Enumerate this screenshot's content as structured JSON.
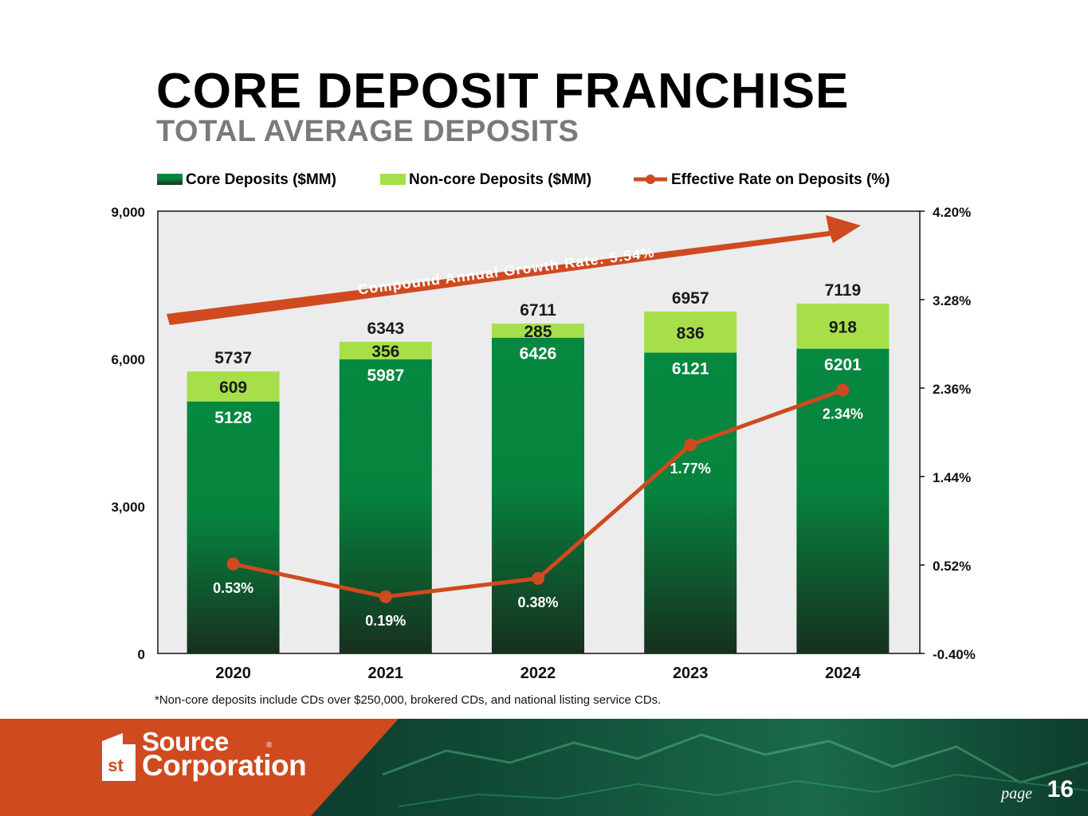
{
  "header": {
    "title": "CORE DEPOSIT FRANCHISE",
    "subtitle": "TOTAL AVERAGE DEPOSITS"
  },
  "chart_data": {
    "type": "bar",
    "stacked": true,
    "categories": [
      "2020",
      "2021",
      "2022",
      "2023",
      "2024"
    ],
    "series": [
      {
        "name": "Core Deposits ($MM)",
        "values": [
          5128,
          5987,
          6426,
          6121,
          6201
        ],
        "color": "#0a8a43"
      },
      {
        "name": "Non-core Deposits ($MM)",
        "values": [
          609,
          356,
          285,
          836,
          918
        ],
        "color": "#a6df4a"
      }
    ],
    "totals": [
      5737,
      6343,
      6711,
      6957,
      7119
    ],
    "line_series": {
      "name": "Effective Rate on Deposits (%)",
      "values": [
        0.53,
        0.19,
        0.38,
        1.77,
        2.34
      ],
      "labels": [
        "0.53%",
        "0.19%",
        "0.38%",
        "1.77%",
        "2.34%"
      ],
      "color": "#cf4a1f"
    },
    "ylim": [
      0,
      9000
    ],
    "y_ticks": [
      "0",
      "3,000",
      "6,000",
      "9,000"
    ],
    "y2lim": [
      -0.4,
      4.2
    ],
    "y2_ticks": [
      "-0.40%",
      "0.52%",
      "1.44%",
      "2.36%",
      "3.28%",
      "4.20%"
    ],
    "annotation": "Compound Annual Growth Rate: 5.54%",
    "legend_position": "top-left",
    "plot_background": "#ececec"
  },
  "footnote": "*Non-core deposits include CDs over $250,000, brokered CDs, and national listing service CDs.",
  "footer": {
    "logo_line1": "Source",
    "logo_line2": "Corporation",
    "logo_mark": "st",
    "logo_reg": "®",
    "page_label": "page",
    "page_number": "16",
    "accent": "#cf4a1f"
  }
}
